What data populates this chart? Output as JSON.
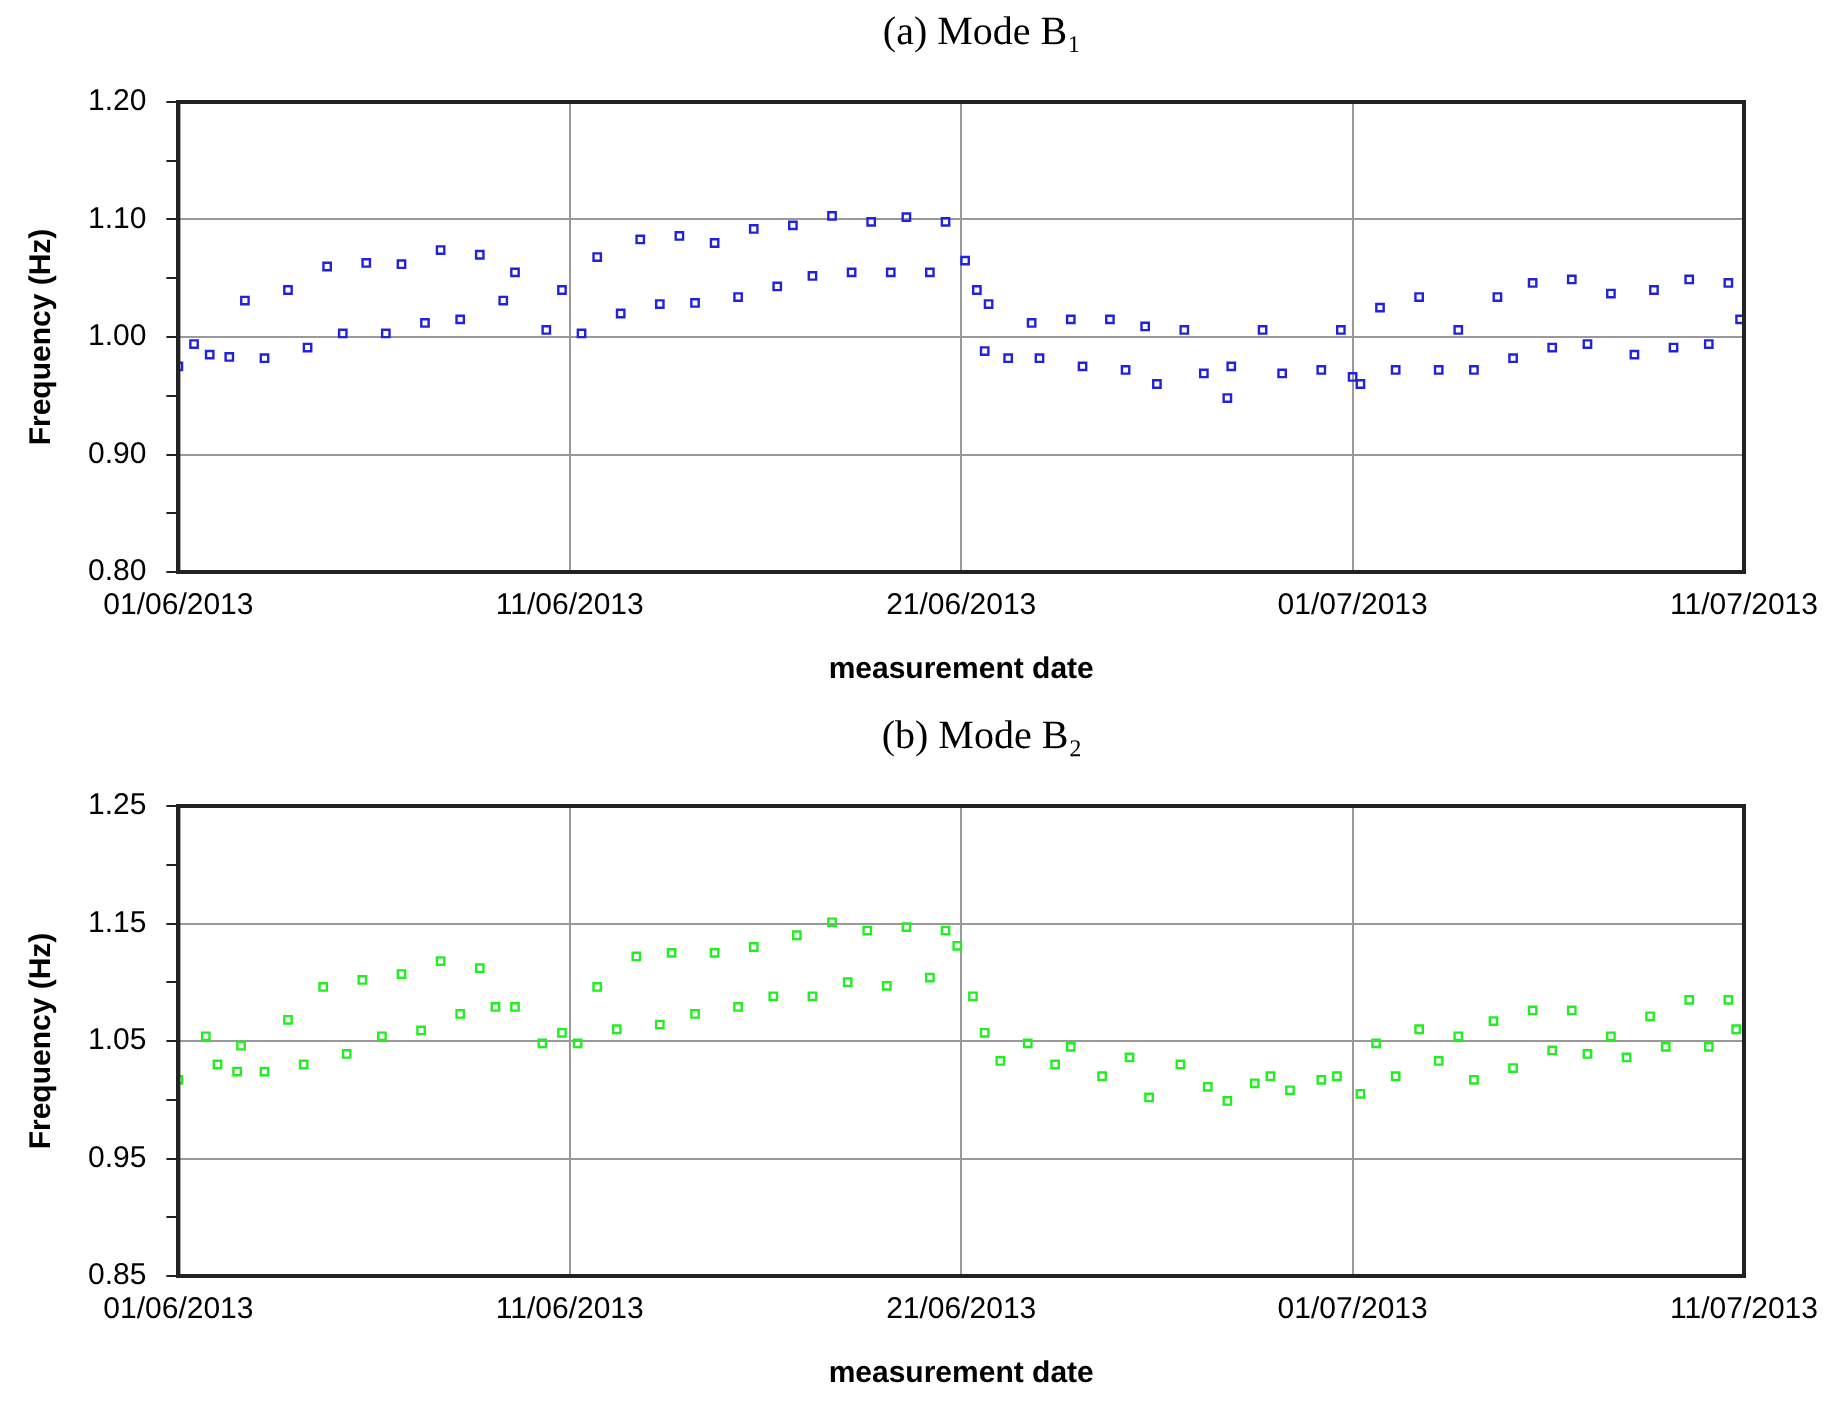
{
  "chart_data": [
    {
      "type": "scatter",
      "title": "(a) Mode B₁",
      "xlabel": "measurement date",
      "ylabel": "Frequency (Hz)",
      "marker": "square",
      "grid": true,
      "xlim": [
        "2013-06-01",
        "2013-07-11"
      ],
      "xticks": [
        {
          "value": "2013-06-01",
          "label": "01/06/2013"
        },
        {
          "value": "2013-06-11",
          "label": "11/06/2013"
        },
        {
          "value": "2013-06-21",
          "label": "21/06/2013"
        },
        {
          "value": "2013-07-01",
          "label": "01/07/2013"
        },
        {
          "value": "2013-07-11",
          "label": "11/07/2013"
        }
      ],
      "ylim": [
        0.8,
        1.2
      ],
      "yticks": [
        {
          "value": 0.8,
          "label": "0.80"
        },
        {
          "value": 0.85,
          "label": null
        },
        {
          "value": 0.9,
          "label": "0.90"
        },
        {
          "value": 0.95,
          "label": null
        },
        {
          "value": 1.0,
          "label": "1.00"
        },
        {
          "value": 1.05,
          "label": null
        },
        {
          "value": 1.1,
          "label": "1.10"
        },
        {
          "value": 1.15,
          "label": null
        },
        {
          "value": 1.2,
          "label": "1.20"
        }
      ],
      "series": [
        {
          "color": "#2222dd",
          "x": [
            "2013-06-01T00:00",
            "2013-06-01T09:36",
            "2013-06-01T19:12",
            "2013-06-02T07:12",
            "2013-06-02T16:48",
            "2013-06-03T04:48",
            "2013-06-03T19:12",
            "2013-06-04T07:12",
            "2013-06-04T19:12",
            "2013-06-05T04:48",
            "2013-06-05T19:12",
            "2013-06-06T07:12",
            "2013-06-06T16:48",
            "2013-06-07T07:12",
            "2013-06-07T16:48",
            "2013-06-08T04:48",
            "2013-06-08T16:48",
            "2013-06-09T07:12",
            "2013-06-09T14:24",
            "2013-06-10T09:36",
            "2013-06-10T19:12",
            "2013-06-11T07:12",
            "2013-06-11T16:48",
            "2013-06-12T07:12",
            "2013-06-12T19:12",
            "2013-06-13T07:12",
            "2013-06-13T19:12",
            "2013-06-14T04:48",
            "2013-06-14T16:48",
            "2013-06-15T07:12",
            "2013-06-15T16:48",
            "2013-06-16T07:12",
            "2013-06-16T16:48",
            "2013-06-17T04:48",
            "2013-06-17T16:48",
            "2013-06-18T04:48",
            "2013-06-18T16:48",
            "2013-06-19T04:48",
            "2013-06-19T14:24",
            "2013-06-20T04:48",
            "2013-06-20T14:24",
            "2013-06-21T02:24",
            "2013-06-21T09:36",
            "2013-06-21T14:24",
            "2013-06-21T16:48",
            "2013-06-22T04:48",
            "2013-06-22T19:12",
            "2013-06-23T00:00",
            "2013-06-23T19:12",
            "2013-06-24T02:24",
            "2013-06-24T19:12",
            "2013-06-25T04:48",
            "2013-06-25T16:48",
            "2013-06-26T00:00",
            "2013-06-26T16:48",
            "2013-06-27T04:48",
            "2013-06-27T19:12",
            "2013-06-27T21:36",
            "2013-06-28T16:48",
            "2013-06-29T04:48",
            "2013-06-30T04:48",
            "2013-06-30T16:48",
            "2013-07-01T00:00",
            "2013-07-01T04:48",
            "2013-07-01T16:48",
            "2013-07-02T02:24",
            "2013-07-02T16:48",
            "2013-07-03T04:48",
            "2013-07-03T16:48",
            "2013-07-04T02:24",
            "2013-07-04T16:48",
            "2013-07-05T02:24",
            "2013-07-05T14:24",
            "2013-07-06T02:24",
            "2013-07-06T14:24",
            "2013-07-07T00:00",
            "2013-07-07T14:24",
            "2013-07-08T04:48",
            "2013-07-08T16:48",
            "2013-07-09T04:48",
            "2013-07-09T14:24",
            "2013-07-10T02:24",
            "2013-07-10T14:24",
            "2013-07-10T21:36"
          ],
          "values": [
            0.975,
            0.994,
            0.985,
            0.983,
            1.031,
            0.982,
            1.04,
            0.991,
            1.06,
            1.003,
            1.063,
            1.003,
            1.062,
            1.012,
            1.074,
            1.015,
            1.07,
            1.031,
            1.055,
            1.006,
            1.04,
            1.003,
            1.068,
            1.02,
            1.083,
            1.028,
            1.086,
            1.029,
            1.08,
            1.034,
            1.092,
            1.043,
            1.095,
            1.052,
            1.103,
            1.055,
            1.098,
            1.055,
            1.102,
            1.055,
            1.098,
            1.065,
            1.04,
            0.988,
            1.028,
            0.982,
            1.012,
            0.982,
            1.015,
            0.975,
            1.015,
            0.972,
            1.009,
            0.96,
            1.006,
            0.969,
            0.948,
            0.975,
            1.006,
            0.969,
            0.972,
            1.006,
            0.966,
            0.96,
            1.025,
            0.972,
            1.034,
            0.972,
            1.006,
            0.972,
            1.034,
            0.982,
            1.046,
            0.991,
            1.049,
            0.994,
            1.037,
            0.985,
            1.04,
            0.991,
            1.049,
            0.994,
            1.046,
            1.015
          ]
        }
      ]
    },
    {
      "type": "scatter",
      "title": "(b) Mode B₂",
      "xlabel": "measurement date",
      "ylabel": "Frequency (Hz)",
      "marker": "square",
      "grid": true,
      "xlim": [
        "2013-06-01",
        "2013-07-11"
      ],
      "xticks": [
        {
          "value": "2013-06-01",
          "label": "01/06/2013"
        },
        {
          "value": "2013-06-11",
          "label": "11/06/2013"
        },
        {
          "value": "2013-06-21",
          "label": "21/06/2013"
        },
        {
          "value": "2013-07-01",
          "label": "01/07/2013"
        },
        {
          "value": "2013-07-11",
          "label": "11/07/2013"
        }
      ],
      "ylim": [
        0.85,
        1.25
      ],
      "yticks": [
        {
          "value": 0.85,
          "label": "0.85"
        },
        {
          "value": 0.9,
          "label": null
        },
        {
          "value": 0.95,
          "label": "0.95"
        },
        {
          "value": 1.0,
          "label": null
        },
        {
          "value": 1.05,
          "label": "1.05"
        },
        {
          "value": 1.1,
          "label": null
        },
        {
          "value": 1.15,
          "label": "1.15"
        },
        {
          "value": 1.2,
          "label": null
        },
        {
          "value": 1.25,
          "label": "1.25"
        }
      ],
      "series": [
        {
          "color": "#22ee22",
          "x": [
            "2013-06-01T00:00",
            "2013-06-01T16:48",
            "2013-06-02T00:00",
            "2013-06-02T12:00",
            "2013-06-02T14:24",
            "2013-06-03T04:48",
            "2013-06-03T19:12",
            "2013-06-04T04:48",
            "2013-06-04T16:48",
            "2013-06-05T07:12",
            "2013-06-05T16:48",
            "2013-06-06T04:48",
            "2013-06-06T16:48",
            "2013-06-07T04:48",
            "2013-06-07T16:48",
            "2013-06-08T04:48",
            "2013-06-08T16:48",
            "2013-06-09T02:24",
            "2013-06-09T14:24",
            "2013-06-10T07:12",
            "2013-06-10T19:12",
            "2013-06-11T04:48",
            "2013-06-11T16:48",
            "2013-06-12T04:48",
            "2013-06-12T16:48",
            "2013-06-13T07:12",
            "2013-06-13T14:24",
            "2013-06-14T04:48",
            "2013-06-14T16:48",
            "2013-06-15T07:12",
            "2013-06-15T16:48",
            "2013-06-16T04:48",
            "2013-06-16T19:12",
            "2013-06-17T04:48",
            "2013-06-17T16:48",
            "2013-06-18T02:24",
            "2013-06-18T14:24",
            "2013-06-19T02:24",
            "2013-06-19T14:24",
            "2013-06-20T04:48",
            "2013-06-20T14:24",
            "2013-06-20T21:36",
            "2013-06-21T07:12",
            "2013-06-21T14:24",
            "2013-06-22T00:00",
            "2013-06-22T16:48",
            "2013-06-23T09:36",
            "2013-06-23T19:12",
            "2013-06-24T14:24",
            "2013-06-25T07:12",
            "2013-06-25T19:12",
            "2013-06-26T14:24",
            "2013-06-27T07:12",
            "2013-06-27T19:12",
            "2013-06-28T12:00",
            "2013-06-28T21:36",
            "2013-06-29T09:36",
            "2013-06-30T04:48",
            "2013-06-30T14:24",
            "2013-07-01T04:48",
            "2013-07-01T14:24",
            "2013-07-02T02:24",
            "2013-07-02T16:48",
            "2013-07-03T04:48",
            "2013-07-03T16:48",
            "2013-07-04T02:24",
            "2013-07-04T14:24",
            "2013-07-05T02:24",
            "2013-07-05T14:24",
            "2013-07-06T02:24",
            "2013-07-06T14:24",
            "2013-07-07T00:00",
            "2013-07-07T14:24",
            "2013-07-08T00:00",
            "2013-07-08T14:24",
            "2013-07-09T00:00",
            "2013-07-09T14:24",
            "2013-07-10T02:24",
            "2013-07-10T14:24",
            "2013-07-10T19:12"
          ],
          "values": [
            1.017,
            1.054,
            1.03,
            1.024,
            1.046,
            1.024,
            1.068,
            1.03,
            1.096,
            1.039,
            1.102,
            1.054,
            1.107,
            1.059,
            1.118,
            1.073,
            1.112,
            1.079,
            1.079,
            1.048,
            1.057,
            1.048,
            1.096,
            1.06,
            1.122,
            1.064,
            1.125,
            1.073,
            1.125,
            1.079,
            1.13,
            1.088,
            1.14,
            1.088,
            1.151,
            1.1,
            1.144,
            1.097,
            1.147,
            1.104,
            1.144,
            1.131,
            1.088,
            1.057,
            1.033,
            1.048,
            1.03,
            1.045,
            1.02,
            1.036,
            1.002,
            1.03,
            1.011,
            0.999,
            1.014,
            1.02,
            1.008,
            1.017,
            1.02,
            1.005,
            1.048,
            1.02,
            1.06,
            1.033,
            1.054,
            1.017,
            1.067,
            1.027,
            1.076,
            1.042,
            1.076,
            1.039,
            1.054,
            1.036,
            1.071,
            1.045,
            1.085,
            1.045,
            1.085,
            1.06
          ]
        }
      ]
    }
  ]
}
